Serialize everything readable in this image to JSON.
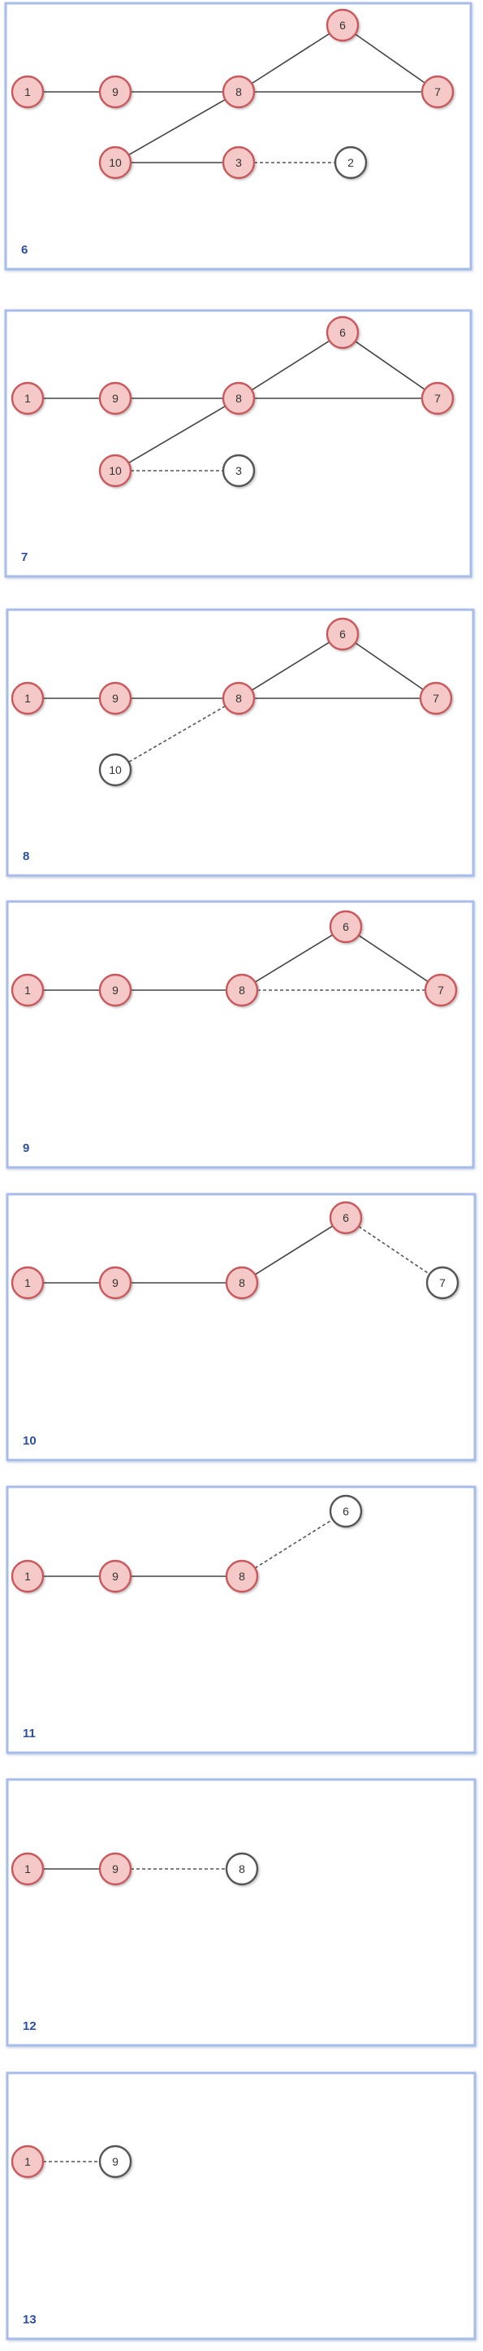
{
  "colors": {
    "frame_stroke": "#a8bce8",
    "frame_fill": "#ffffff",
    "edge_solid": "#444444",
    "edge_dashed": "#555555",
    "node_active_fill": "#f6c9c9",
    "node_active_stroke": "#c9595c",
    "node_inactive_fill": "#ffffff",
    "node_inactive_stroke": "#555555",
    "node_text": "#333333",
    "frame_label": "#2b4fa2"
  },
  "panels": [
    {
      "label": "6",
      "nodes": [
        {
          "id": "1",
          "state": "active"
        },
        {
          "id": "9",
          "state": "active"
        },
        {
          "id": "8",
          "state": "active"
        },
        {
          "id": "6",
          "state": "active"
        },
        {
          "id": "7",
          "state": "active"
        },
        {
          "id": "10",
          "state": "active"
        },
        {
          "id": "3",
          "state": "active"
        },
        {
          "id": "2",
          "state": "inactive"
        }
      ],
      "edges": [
        {
          "from": "1",
          "to": "9",
          "style": "solid"
        },
        {
          "from": "9",
          "to": "8",
          "style": "solid"
        },
        {
          "from": "8",
          "to": "6",
          "style": "solid"
        },
        {
          "from": "6",
          "to": "7",
          "style": "solid"
        },
        {
          "from": "8",
          "to": "7",
          "style": "solid"
        },
        {
          "from": "8",
          "to": "10",
          "style": "solid"
        },
        {
          "from": "10",
          "to": "3",
          "style": "solid"
        },
        {
          "from": "3",
          "to": "2",
          "style": "dashed"
        }
      ]
    },
    {
      "label": "7",
      "nodes": [
        {
          "id": "1",
          "state": "active"
        },
        {
          "id": "9",
          "state": "active"
        },
        {
          "id": "8",
          "state": "active"
        },
        {
          "id": "6",
          "state": "active"
        },
        {
          "id": "7",
          "state": "active"
        },
        {
          "id": "10",
          "state": "active"
        },
        {
          "id": "3",
          "state": "inactive"
        }
      ],
      "edges": [
        {
          "from": "1",
          "to": "9",
          "style": "solid"
        },
        {
          "from": "9",
          "to": "8",
          "style": "solid"
        },
        {
          "from": "8",
          "to": "6",
          "style": "solid"
        },
        {
          "from": "6",
          "to": "7",
          "style": "solid"
        },
        {
          "from": "8",
          "to": "7",
          "style": "solid"
        },
        {
          "from": "8",
          "to": "10",
          "style": "solid"
        },
        {
          "from": "10",
          "to": "3",
          "style": "dashed"
        }
      ]
    },
    {
      "label": "8",
      "nodes": [
        {
          "id": "1",
          "state": "active"
        },
        {
          "id": "9",
          "state": "active"
        },
        {
          "id": "8",
          "state": "active"
        },
        {
          "id": "6",
          "state": "active"
        },
        {
          "id": "7",
          "state": "active"
        },
        {
          "id": "10",
          "state": "inactive"
        }
      ],
      "edges": [
        {
          "from": "1",
          "to": "9",
          "style": "solid"
        },
        {
          "from": "9",
          "to": "8",
          "style": "solid"
        },
        {
          "from": "8",
          "to": "6",
          "style": "solid"
        },
        {
          "from": "6",
          "to": "7",
          "style": "solid"
        },
        {
          "from": "8",
          "to": "7",
          "style": "solid"
        },
        {
          "from": "8",
          "to": "10",
          "style": "dashed"
        }
      ]
    },
    {
      "label": "9",
      "nodes": [
        {
          "id": "1",
          "state": "active"
        },
        {
          "id": "9",
          "state": "active"
        },
        {
          "id": "8",
          "state": "active"
        },
        {
          "id": "6",
          "state": "active"
        },
        {
          "id": "7",
          "state": "active"
        }
      ],
      "edges": [
        {
          "from": "1",
          "to": "9",
          "style": "solid"
        },
        {
          "from": "9",
          "to": "8",
          "style": "solid"
        },
        {
          "from": "8",
          "to": "6",
          "style": "solid"
        },
        {
          "from": "6",
          "to": "7",
          "style": "solid"
        },
        {
          "from": "8",
          "to": "7",
          "style": "dashed"
        }
      ]
    },
    {
      "label": "10",
      "nodes": [
        {
          "id": "1",
          "state": "active"
        },
        {
          "id": "9",
          "state": "active"
        },
        {
          "id": "8",
          "state": "active"
        },
        {
          "id": "6",
          "state": "active"
        },
        {
          "id": "7",
          "state": "inactive"
        }
      ],
      "edges": [
        {
          "from": "1",
          "to": "9",
          "style": "solid"
        },
        {
          "from": "9",
          "to": "8",
          "style": "solid"
        },
        {
          "from": "8",
          "to": "6",
          "style": "solid"
        },
        {
          "from": "6",
          "to": "7",
          "style": "dashed"
        }
      ]
    },
    {
      "label": "11",
      "nodes": [
        {
          "id": "1",
          "state": "active"
        },
        {
          "id": "9",
          "state": "active"
        },
        {
          "id": "8",
          "state": "active"
        },
        {
          "id": "6",
          "state": "inactive"
        }
      ],
      "edges": [
        {
          "from": "1",
          "to": "9",
          "style": "solid"
        },
        {
          "from": "9",
          "to": "8",
          "style": "solid"
        },
        {
          "from": "8",
          "to": "6",
          "style": "dashed"
        }
      ]
    },
    {
      "label": "12",
      "nodes": [
        {
          "id": "1",
          "state": "active"
        },
        {
          "id": "9",
          "state": "active"
        },
        {
          "id": "8",
          "state": "inactive"
        }
      ],
      "edges": [
        {
          "from": "1",
          "to": "9",
          "style": "solid"
        },
        {
          "from": "9",
          "to": "8",
          "style": "dashed"
        }
      ]
    },
    {
      "label": "13",
      "nodes": [
        {
          "id": "1",
          "state": "active"
        },
        {
          "id": "9",
          "state": "inactive"
        }
      ],
      "edges": [
        {
          "from": "1",
          "to": "9",
          "style": "dashed"
        }
      ]
    }
  ]
}
